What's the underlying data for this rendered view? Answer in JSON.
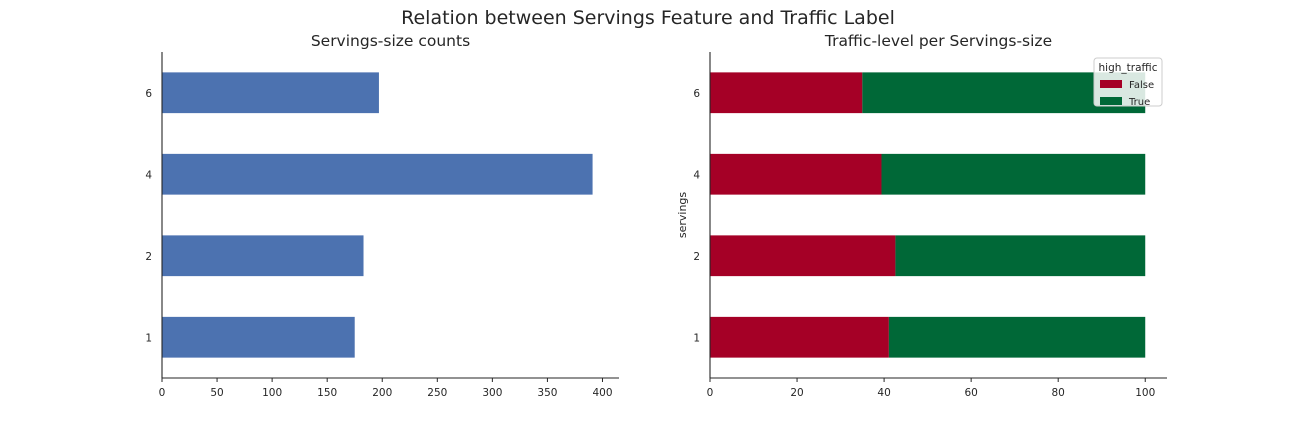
{
  "figure": {
    "suptitle": "Relation between Servings Feature and Traffic Label"
  },
  "chart_data": [
    {
      "type": "bar",
      "orientation": "horizontal",
      "title": "Servings-size counts",
      "xlabel": "",
      "ylabel": "",
      "categories": [
        "1",
        "2",
        "4",
        "6"
      ],
      "values": [
        175,
        183,
        391,
        197
      ],
      "xlim": [
        0,
        415
      ],
      "xticks": [
        0,
        50,
        100,
        150,
        200,
        250,
        300,
        350,
        400
      ],
      "color": "#4c72b0",
      "grid": false
    },
    {
      "type": "bar",
      "orientation": "horizontal",
      "stacked": true,
      "title": "Traffic-level per Servings-size",
      "xlabel": "",
      "ylabel": "servings",
      "categories": [
        "1",
        "2",
        "4",
        "6"
      ],
      "series": [
        {
          "name": "False",
          "values": [
            41.1,
            42.6,
            39.4,
            35.0
          ],
          "color": "#a50026"
        },
        {
          "name": "True",
          "values": [
            58.9,
            57.4,
            60.6,
            65.0
          ],
          "color": "#006837"
        }
      ],
      "xlim": [
        0,
        105
      ],
      "xticks": [
        0,
        20,
        40,
        60,
        80,
        100
      ],
      "legend": {
        "title": "high_traffic",
        "placement": "upper right"
      },
      "grid": false
    }
  ]
}
